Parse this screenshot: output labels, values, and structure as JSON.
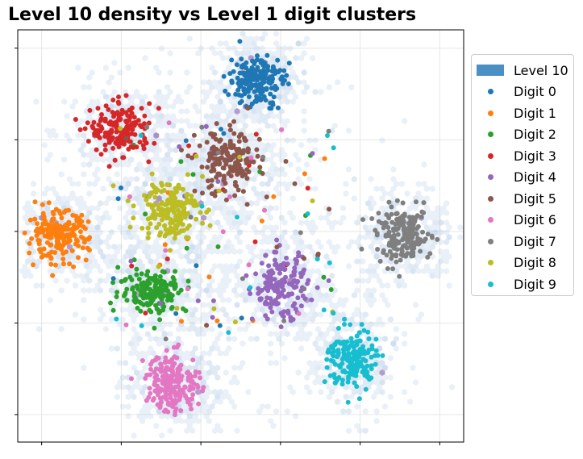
{
  "chart_data": {
    "type": "scatter",
    "title": "Level 10 density vs Level 1 digit clusters",
    "xlabel": "",
    "ylabel": "",
    "xlim": [
      -1.3,
      4.3
    ],
    "ylim": [
      -0.3,
      4.2
    ],
    "grid": true,
    "legend_position": "right",
    "density_layer": {
      "name": "Level 10",
      "color": "#4a90c4"
    },
    "series": [
      {
        "name": "Digit 0",
        "color": "#1f77b4",
        "center": [
          1.7,
          3.65
        ],
        "spread": [
          0.17,
          0.14
        ],
        "count": 190
      },
      {
        "name": "Digit 1",
        "color": "#ff7f0e",
        "center": [
          -0.8,
          1.95
        ],
        "spread": [
          0.19,
          0.13
        ],
        "count": 190
      },
      {
        "name": "Digit 2",
        "color": "#2ca02c",
        "center": [
          0.4,
          1.35
        ],
        "spread": [
          0.21,
          0.12
        ],
        "count": 160
      },
      {
        "name": "Digit 3",
        "color": "#d62728",
        "center": [
          0.0,
          3.1
        ],
        "spread": [
          0.19,
          0.14
        ],
        "count": 170
      },
      {
        "name": "Digit 4",
        "color": "#9467bd",
        "center": [
          2.0,
          1.4
        ],
        "spread": [
          0.17,
          0.18
        ],
        "count": 160
      },
      {
        "name": "Digit 5",
        "color": "#8c564b",
        "center": [
          1.35,
          2.75
        ],
        "spread": [
          0.2,
          0.18
        ],
        "count": 170
      },
      {
        "name": "Digit 6",
        "color": "#e377c2",
        "center": [
          0.65,
          0.35
        ],
        "spread": [
          0.17,
          0.16
        ],
        "count": 190
      },
      {
        "name": "Digit 7",
        "color": "#7f7f7f",
        "center": [
          3.55,
          1.95
        ],
        "spread": [
          0.17,
          0.15
        ],
        "count": 170
      },
      {
        "name": "Digit 8",
        "color": "#bcbd22",
        "center": [
          0.6,
          2.25
        ],
        "spread": [
          0.19,
          0.16
        ],
        "count": 170
      },
      {
        "name": "Digit 9",
        "color": "#17becf",
        "center": [
          2.9,
          0.6
        ],
        "spread": [
          0.15,
          0.17
        ],
        "count": 170
      }
    ]
  }
}
